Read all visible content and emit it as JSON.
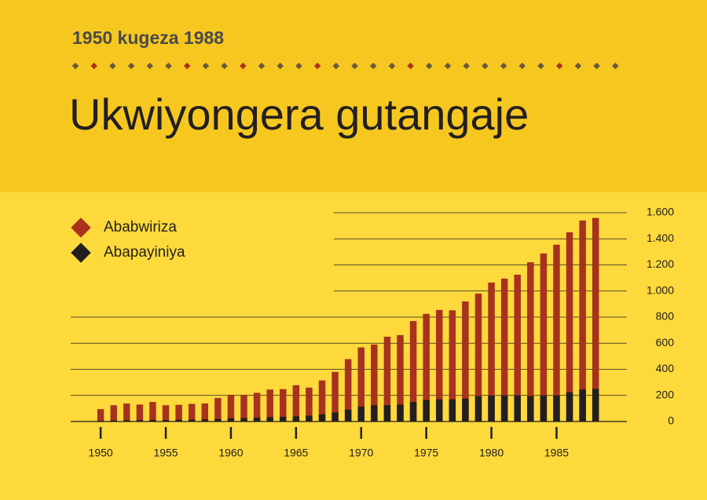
{
  "chart_data": {
    "type": "bar",
    "subtitle": "1950 kugeza 1988",
    "title": "Ukwiyongera gutangaje",
    "x": [
      1950,
      1951,
      1952,
      1953,
      1954,
      1955,
      1956,
      1957,
      1958,
      1959,
      1960,
      1961,
      1962,
      1963,
      1964,
      1965,
      1966,
      1967,
      1968,
      1969,
      1970,
      1971,
      1972,
      1973,
      1974,
      1975,
      1976,
      1977,
      1978,
      1979,
      1980,
      1981,
      1982,
      1983,
      1984,
      1985,
      1986,
      1987,
      1988
    ],
    "series": [
      {
        "name": "Ababwiriza",
        "color": "#a8321e",
        "values": [
          95,
          125,
          138,
          130,
          150,
          125,
          128,
          135,
          138,
          180,
          205,
          205,
          220,
          245,
          248,
          278,
          260,
          315,
          380,
          478,
          568,
          590,
          650,
          662,
          770,
          825,
          855,
          852,
          920,
          980,
          1065,
          1095,
          1125,
          1220,
          1288,
          1355,
          1450,
          1540,
          1560
        ]
      },
      {
        "name": "Abapayiniya",
        "color": "#231f20",
        "values": [
          5,
          8,
          10,
          10,
          12,
          12,
          14,
          15,
          16,
          20,
          25,
          27,
          30,
          34,
          36,
          40,
          45,
          55,
          70,
          90,
          115,
          125,
          125,
          130,
          150,
          165,
          170,
          170,
          175,
          195,
          200,
          200,
          200,
          195,
          200,
          200,
          225,
          245,
          250
        ]
      }
    ],
    "xlim": [
      1947.7,
      1990.4
    ],
    "xticks": [
      1950,
      1955,
      1960,
      1965,
      1970,
      1975,
      1980,
      1985
    ],
    "ylim": [
      0,
      1600
    ],
    "yticks": [
      0,
      200,
      400,
      600,
      800,
      {
        "value": 1000,
        "label": "1.000"
      },
      {
        "value": 1200,
        "label": "1.200"
      },
      {
        "value": 1400,
        "label": "1.400"
      },
      {
        "value": 1600,
        "label": "1.600"
      }
    ],
    "grid": true
  }
}
